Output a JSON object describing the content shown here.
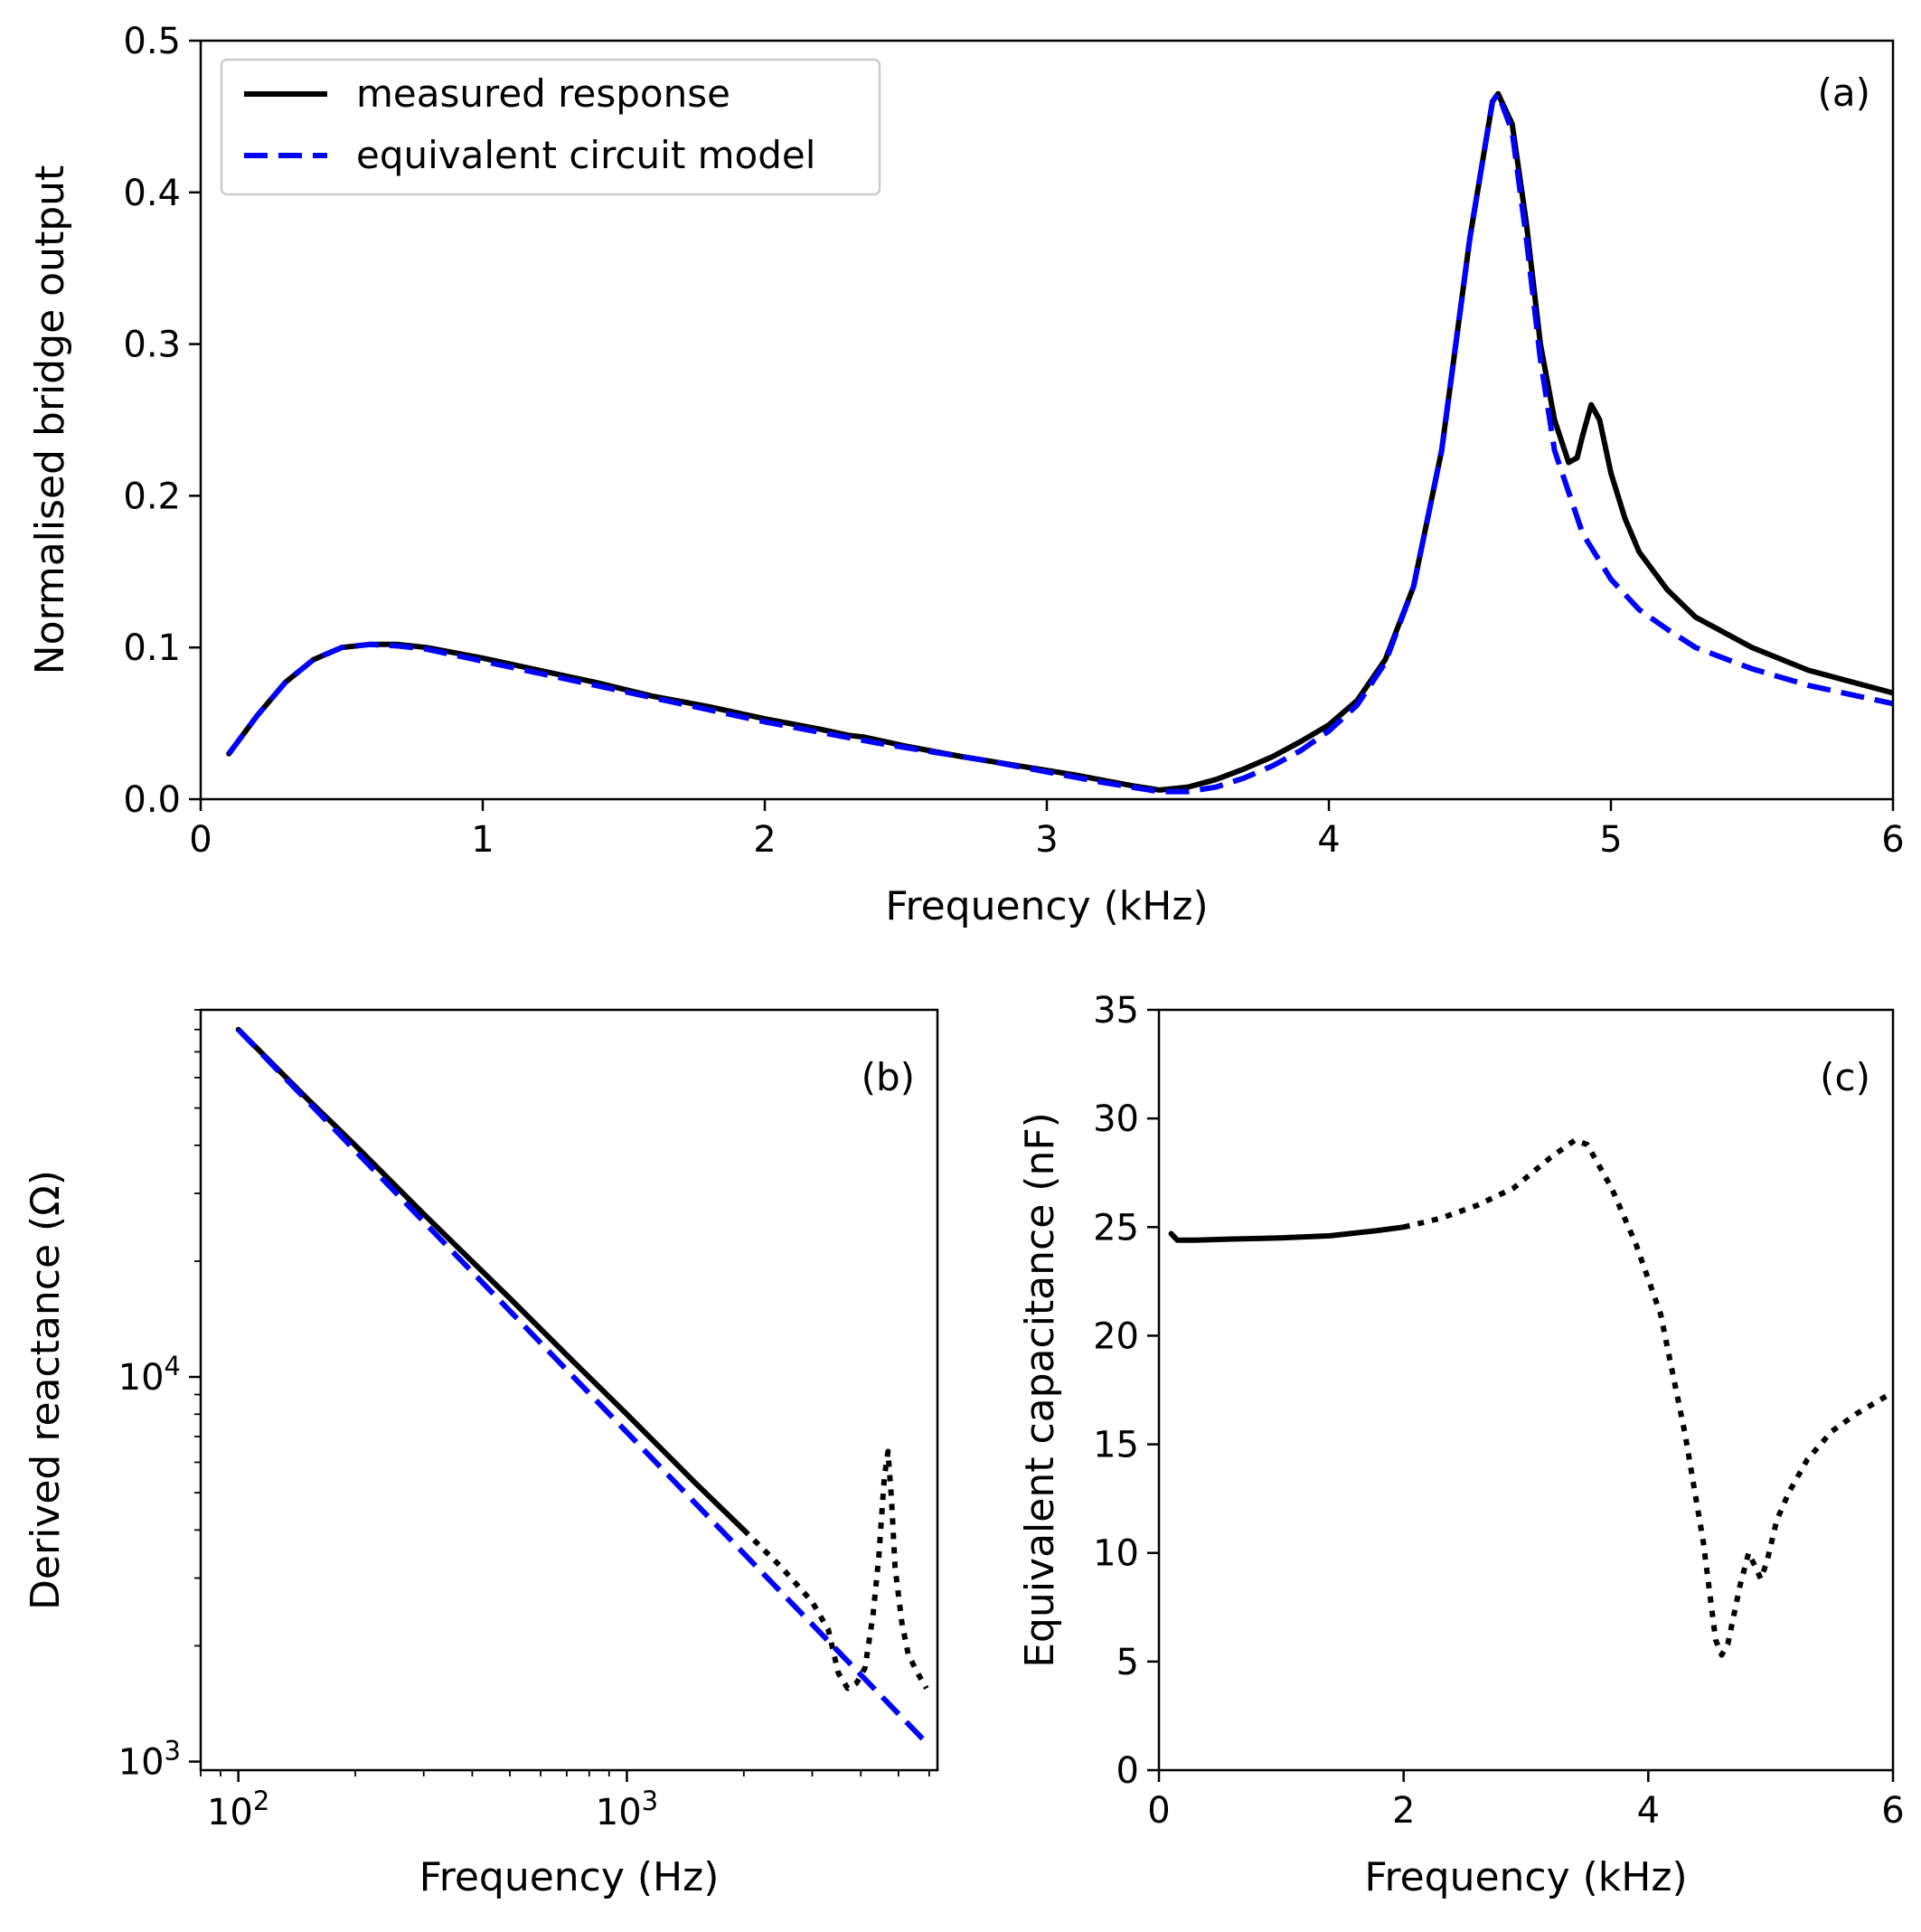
{
  "chart_data": [
    {
      "type": "line",
      "panel_label": "(a)",
      "xlabel": "Frequency (kHz)",
      "ylabel": "Normalised bridge output",
      "xlim": [
        0,
        6
      ],
      "ylim": [
        0,
        0.5
      ],
      "xscale": "linear",
      "yscale": "linear",
      "xticks": [
        0,
        1,
        2,
        3,
        4,
        5,
        6
      ],
      "xtick_labels": [
        "0",
        "1",
        "2",
        "3",
        "4",
        "5",
        "6"
      ],
      "yticks": [
        0.0,
        0.1,
        0.2,
        0.3,
        0.4,
        0.5
      ],
      "ytick_labels": [
        "0.0",
        "0.1",
        "0.2",
        "0.3",
        "0.4",
        "0.5"
      ],
      "legend": {
        "position": "upper-left",
        "entries": [
          {
            "label": "measured response",
            "series": 0
          },
          {
            "label": "equivalent circuit model",
            "series": 1
          }
        ]
      },
      "series": [
        {
          "name": "measured response",
          "color": "#000000",
          "style": "solid",
          "points": [
            [
              0.1,
              0.03
            ],
            [
              0.2,
              0.055
            ],
            [
              0.3,
              0.077
            ],
            [
              0.4,
              0.092
            ],
            [
              0.5,
              0.1
            ],
            [
              0.6,
              0.102
            ],
            [
              0.7,
              0.102
            ],
            [
              0.8,
              0.1
            ],
            [
              1.0,
              0.093
            ],
            [
              1.2,
              0.085
            ],
            [
              1.4,
              0.077
            ],
            [
              1.6,
              0.068
            ],
            [
              1.8,
              0.061
            ],
            [
              2.0,
              0.053
            ],
            [
              2.2,
              0.046
            ],
            [
              2.3,
              0.042
            ],
            [
              2.35,
              0.041
            ],
            [
              2.4,
              0.039
            ],
            [
              2.5,
              0.035
            ],
            [
              2.7,
              0.028
            ],
            [
              2.9,
              0.022
            ],
            [
              3.1,
              0.016
            ],
            [
              3.3,
              0.009
            ],
            [
              3.4,
              0.006
            ],
            [
              3.5,
              0.008
            ],
            [
              3.6,
              0.013
            ],
            [
              3.7,
              0.02
            ],
            [
              3.8,
              0.028
            ],
            [
              3.9,
              0.038
            ],
            [
              4.0,
              0.049
            ],
            [
              4.1,
              0.065
            ],
            [
              4.2,
              0.092
            ],
            [
              4.3,
              0.14
            ],
            [
              4.4,
              0.23
            ],
            [
              4.5,
              0.37
            ],
            [
              4.58,
              0.46
            ],
            [
              4.6,
              0.465
            ],
            [
              4.65,
              0.445
            ],
            [
              4.7,
              0.38
            ],
            [
              4.75,
              0.3
            ],
            [
              4.8,
              0.25
            ],
            [
              4.85,
              0.222
            ],
            [
              4.88,
              0.225
            ],
            [
              4.9,
              0.24
            ],
            [
              4.93,
              0.26
            ],
            [
              4.96,
              0.25
            ],
            [
              5.0,
              0.215
            ],
            [
              5.05,
              0.185
            ],
            [
              5.1,
              0.163
            ],
            [
              5.2,
              0.138
            ],
            [
              5.3,
              0.12
            ],
            [
              5.5,
              0.1
            ],
            [
              5.7,
              0.085
            ],
            [
              6.0,
              0.07
            ]
          ]
        },
        {
          "name": "equivalent circuit model",
          "color": "#0000ff",
          "style": "dashed",
          "points": [
            [
              0.1,
              0.03
            ],
            [
              0.2,
              0.055
            ],
            [
              0.3,
              0.077
            ],
            [
              0.4,
              0.092
            ],
            [
              0.5,
              0.1
            ],
            [
              0.6,
              0.102
            ],
            [
              0.7,
              0.101
            ],
            [
              0.8,
              0.099
            ],
            [
              1.0,
              0.091
            ],
            [
              1.2,
              0.083
            ],
            [
              1.4,
              0.075
            ],
            [
              1.6,
              0.067
            ],
            [
              1.8,
              0.059
            ],
            [
              2.0,
              0.051
            ],
            [
              2.2,
              0.044
            ],
            [
              2.4,
              0.037
            ],
            [
              2.6,
              0.031
            ],
            [
              2.8,
              0.025
            ],
            [
              3.0,
              0.018
            ],
            [
              3.2,
              0.011
            ],
            [
              3.4,
              0.005
            ],
            [
              3.5,
              0.005
            ],
            [
              3.6,
              0.008
            ],
            [
              3.7,
              0.014
            ],
            [
              3.8,
              0.022
            ],
            [
              3.9,
              0.032
            ],
            [
              4.0,
              0.045
            ],
            [
              4.1,
              0.062
            ],
            [
              4.2,
              0.09
            ],
            [
              4.3,
              0.14
            ],
            [
              4.4,
              0.23
            ],
            [
              4.5,
              0.37
            ],
            [
              4.58,
              0.46
            ],
            [
              4.6,
              0.465
            ],
            [
              4.65,
              0.44
            ],
            [
              4.7,
              0.37
            ],
            [
              4.75,
              0.29
            ],
            [
              4.8,
              0.23
            ],
            [
              4.9,
              0.175
            ],
            [
              5.0,
              0.145
            ],
            [
              5.1,
              0.125
            ],
            [
              5.2,
              0.112
            ],
            [
              5.3,
              0.1
            ],
            [
              5.5,
              0.086
            ],
            [
              5.7,
              0.075
            ],
            [
              6.0,
              0.063
            ]
          ]
        }
      ]
    },
    {
      "type": "line",
      "panel_label": "(b)",
      "xlabel": "Frequency (Hz)",
      "ylabel": "Derived reactance (Ω)",
      "xlim": [
        80,
        6300
      ],
      "ylim": [
        950,
        90000
      ],
      "xscale": "log",
      "yscale": "log",
      "xticks": [
        100,
        1000
      ],
      "xtick_labels": [
        {
          "base": "10",
          "exp": "2"
        },
        {
          "base": "10",
          "exp": "3"
        }
      ],
      "yticks": [
        1000,
        10000
      ],
      "ytick_labels": [
        {
          "base": "10",
          "exp": "3"
        },
        {
          "base": "10",
          "exp": "4"
        }
      ],
      "series": [
        {
          "color": "#000000",
          "style": "solid",
          "points": [
            [
              100,
              80000
            ],
            [
              150,
              53000
            ],
            [
              200,
              40000
            ],
            [
              300,
              26500
            ],
            [
              500,
              16000
            ],
            [
              700,
              11400
            ],
            [
              1000,
              8000
            ],
            [
              1500,
              5300
            ],
            [
              2000,
              4000
            ]
          ]
        },
        {
          "color": "#000000",
          "style": "dotted",
          "points": [
            [
              2000,
              4000
            ],
            [
              2500,
              3200
            ],
            [
              3000,
              2600
            ],
            [
              3300,
              2200
            ],
            [
              3500,
              1700
            ],
            [
              3700,
              1550
            ],
            [
              3900,
              1600
            ],
            [
              4100,
              1750
            ],
            [
              4300,
              2400
            ],
            [
              4450,
              3400
            ],
            [
              4600,
              5500
            ],
            [
              4700,
              6400
            ],
            [
              4800,
              4800
            ],
            [
              4900,
              3200
            ],
            [
              5100,
              2300
            ],
            [
              5300,
              1900
            ],
            [
              5600,
              1700
            ],
            [
              5900,
              1550
            ]
          ]
        },
        {
          "color": "#0000ff",
          "style": "dashed",
          "points": [
            [
              100,
              80000
            ],
            [
              6000,
              1100
            ]
          ]
        }
      ]
    },
    {
      "type": "line",
      "panel_label": "(c)",
      "xlabel": "Frequency (kHz)",
      "ylabel": "Equivalent capacitance (nF)",
      "xlim": [
        0,
        6
      ],
      "ylim": [
        0,
        35
      ],
      "xscale": "linear",
      "yscale": "linear",
      "xticks": [
        0,
        2,
        4,
        6
      ],
      "xtick_labels": [
        "0",
        "2",
        "4",
        "6"
      ],
      "yticks": [
        0,
        5,
        10,
        15,
        20,
        25,
        30,
        35
      ],
      "ytick_labels": [
        "0",
        "5",
        "10",
        "15",
        "20",
        "25",
        "30",
        "35"
      ],
      "series": [
        {
          "color": "#000000",
          "style": "solid",
          "points": [
            [
              0.1,
              24.7
            ],
            [
              0.15,
              24.4
            ],
            [
              0.3,
              24.4
            ],
            [
              0.6,
              24.45
            ],
            [
              1.0,
              24.5
            ],
            [
              1.4,
              24.6
            ],
            [
              1.8,
              24.85
            ],
            [
              2.0,
              25.0
            ]
          ]
        },
        {
          "color": "#000000",
          "style": "dotted",
          "points": [
            [
              2.0,
              25.0
            ],
            [
              2.3,
              25.4
            ],
            [
              2.6,
              26.0
            ],
            [
              2.9,
              26.8
            ],
            [
              3.2,
              28.2
            ],
            [
              3.4,
              29.0
            ],
            [
              3.5,
              28.8
            ],
            [
              3.7,
              26.8
            ],
            [
              3.9,
              24.2
            ],
            [
              4.1,
              21.0
            ],
            [
              4.3,
              15.5
            ],
            [
              4.45,
              10.5
            ],
            [
              4.55,
              6.0
            ],
            [
              4.6,
              5.3
            ],
            [
              4.65,
              5.8
            ],
            [
              4.75,
              8.5
            ],
            [
              4.82,
              10.0
            ],
            [
              4.88,
              9.3
            ],
            [
              4.92,
              8.8
            ],
            [
              4.97,
              9.6
            ],
            [
              5.05,
              11.5
            ],
            [
              5.15,
              12.8
            ],
            [
              5.3,
              14.3
            ],
            [
              5.5,
              15.6
            ],
            [
              5.7,
              16.4
            ],
            [
              6.0,
              17.4
            ]
          ]
        }
      ]
    }
  ]
}
